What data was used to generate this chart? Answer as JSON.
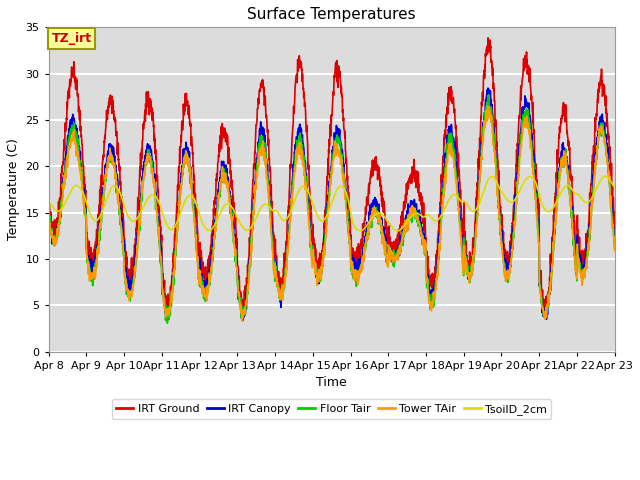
{
  "title": "Surface Temperatures",
  "xlabel": "Time",
  "ylabel": "Temperature (C)",
  "ylim": [
    0,
    35
  ],
  "annotation_text": "TZ_irt",
  "annotation_color": "#cc0000",
  "annotation_bg": "#ffff99",
  "annotation_border": "#aaaa00",
  "series": [
    {
      "label": "IRT Ground",
      "color": "#dd0000"
    },
    {
      "label": "IRT Canopy",
      "color": "#0000dd"
    },
    {
      "label": "Floor Tair",
      "color": "#00cc00"
    },
    {
      "label": "Tower TAir",
      "color": "#ff9900"
    },
    {
      "label": "TsoilD_2cm",
      "color": "#dddd00"
    }
  ],
  "xtick_labels": [
    "Apr 8",
    "Apr 9",
    "Apr 10",
    "Apr 11",
    "Apr 12",
    "Apr 13",
    "Apr 14",
    "Apr 15",
    "Apr 16",
    "Apr 17",
    "Apr 18",
    "Apr 19",
    "Apr 20",
    "Apr 21",
    "Apr 22",
    "Apr 23"
  ],
  "background_color": "#dcdcdc",
  "grid_color": "#ffffff",
  "linewidth": 1.2
}
